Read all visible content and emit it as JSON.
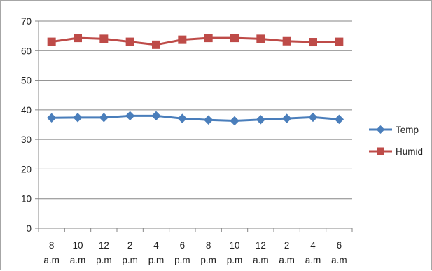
{
  "chart_data": {
    "type": "line",
    "categories": [
      [
        "8",
        "a.m"
      ],
      [
        "10",
        "a.m"
      ],
      [
        "12",
        "p.m"
      ],
      [
        "2",
        "p.m"
      ],
      [
        "4",
        "p.m"
      ],
      [
        "6",
        "p.m"
      ],
      [
        "8",
        "p.m"
      ],
      [
        "10",
        "p.m"
      ],
      [
        "12",
        "a.m"
      ],
      [
        "2",
        "a.m"
      ],
      [
        "4",
        "a.m"
      ],
      [
        "6",
        "a.m"
      ]
    ],
    "series": [
      {
        "name": "Temp",
        "color": "#4a7ebb",
        "marker": "diamond",
        "values": [
          37.3,
          37.4,
          37.4,
          38.0,
          38.0,
          37.1,
          36.6,
          36.3,
          36.7,
          37.1,
          37.5,
          36.8
        ]
      },
      {
        "name": "Humid",
        "color": "#be4b48",
        "marker": "square",
        "values": [
          63.0,
          64.3,
          64.0,
          63.0,
          62.0,
          63.7,
          64.3,
          64.3,
          64.0,
          63.2,
          62.9,
          63.0
        ]
      }
    ],
    "ylim": [
      0,
      70
    ],
    "yticks": [
      0,
      10,
      20,
      30,
      40,
      50,
      60,
      70
    ],
    "grid": true,
    "legend": "right",
    "title": "",
    "xlabel": "",
    "ylabel": ""
  }
}
